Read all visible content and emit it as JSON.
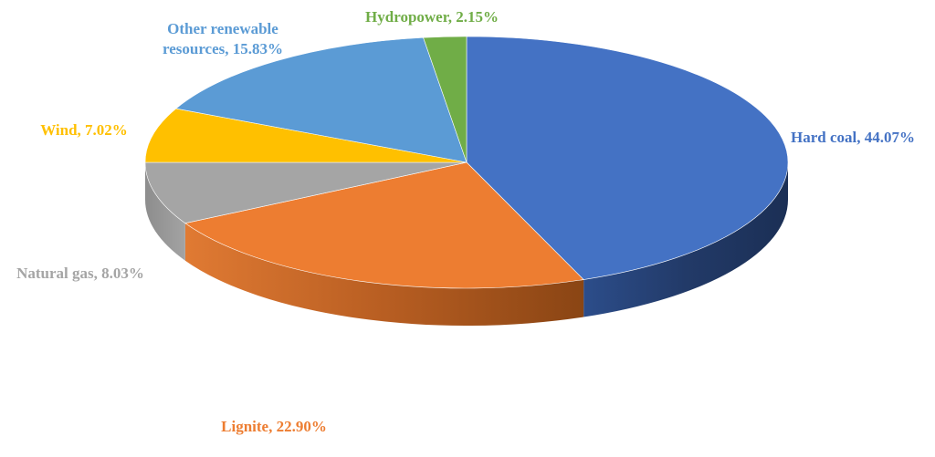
{
  "chart_data": {
    "type": "pie",
    "style": "3d",
    "slices": [
      {
        "label": "Hard coal",
        "value": 44.07,
        "display": "Hard coal, 44.07%",
        "color": "#4472C4"
      },
      {
        "label": "Lignite",
        "value": 22.9,
        "display": "Lignite, 22.90%",
        "color": "#ED7D31"
      },
      {
        "label": "Natural gas",
        "value": 8.03,
        "display": "Natural gas, 8.03%",
        "color": "#A5A5A5"
      },
      {
        "label": "Wind",
        "value": 7.02,
        "display": "Wind, 7.02%",
        "color": "#FFC000"
      },
      {
        "label": "Other renewable resources",
        "value": 15.83,
        "display_lines": [
          "Other renewable",
          "resources, 15.83%"
        ],
        "color": "#5B9BD5"
      },
      {
        "label": "Hydropower",
        "value": 2.15,
        "display": "Hydropower, 2.15%",
        "color": "#70AD47"
      }
    ],
    "start": "12 o'clock",
    "direction": "clockwise",
    "legend": "none",
    "data_labels": "outside"
  }
}
